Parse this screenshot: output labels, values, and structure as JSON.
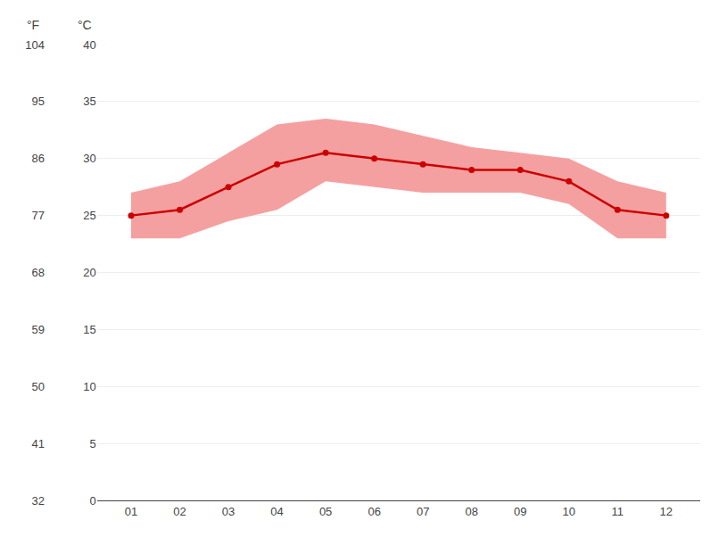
{
  "chart_data": {
    "type": "line",
    "categories": [
      "01",
      "02",
      "03",
      "04",
      "05",
      "06",
      "07",
      "08",
      "09",
      "10",
      "11",
      "12"
    ],
    "series": [
      {
        "type": "band",
        "color": "#f5a0a0",
        "low": [
          23.0,
          23.0,
          24.5,
          25.5,
          28.0,
          27.5,
          27.0,
          27.0,
          27.0,
          26.0,
          23.0,
          23.0
        ],
        "high": [
          27.0,
          28.0,
          30.5,
          33.0,
          33.5,
          33.0,
          32.0,
          31.0,
          30.5,
          30.0,
          28.0,
          27.0
        ]
      },
      {
        "type": "line",
        "color": "#cc0000",
        "marker": "circle",
        "values": [
          25.0,
          25.5,
          27.5,
          29.5,
          30.5,
          30.0,
          29.5,
          29.0,
          29.0,
          28.0,
          25.5,
          25.0
        ]
      }
    ],
    "y_label": "°C",
    "ylim": [
      0,
      40
    ],
    "yticks": [
      0,
      5,
      10,
      15,
      20,
      25,
      30,
      35,
      40
    ],
    "y2_label": "°F",
    "y2lim": [
      32,
      104
    ],
    "y2ticks": [
      32,
      41,
      50,
      59,
      68,
      77,
      86,
      95,
      104
    ],
    "grid": true
  }
}
